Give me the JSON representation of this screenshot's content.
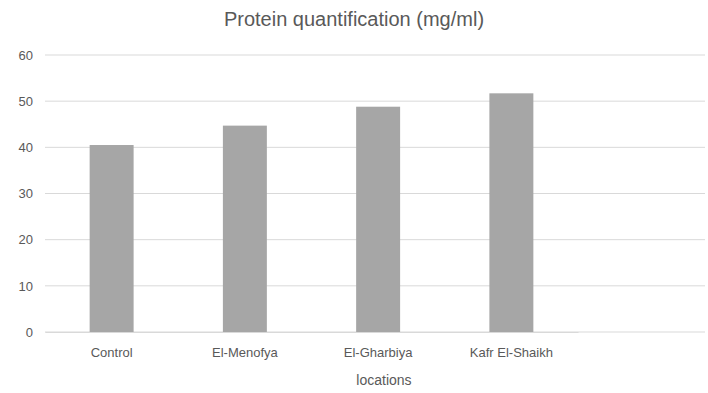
{
  "chart_data": {
    "type": "bar",
    "title": "Protein quantification (mg/ml)",
    "x_label": "locations",
    "categories": [
      "Control",
      "El-Menofya",
      "El-Gharbiya",
      "Kafr El-Shaikh"
    ],
    "values": [
      40.5,
      44.7,
      48.8,
      51.7
    ],
    "color": "#a6a6a6",
    "ylim": [
      0,
      60
    ],
    "yticks": [
      0,
      10,
      20,
      30,
      40,
      50,
      60
    ],
    "grid": true
  }
}
